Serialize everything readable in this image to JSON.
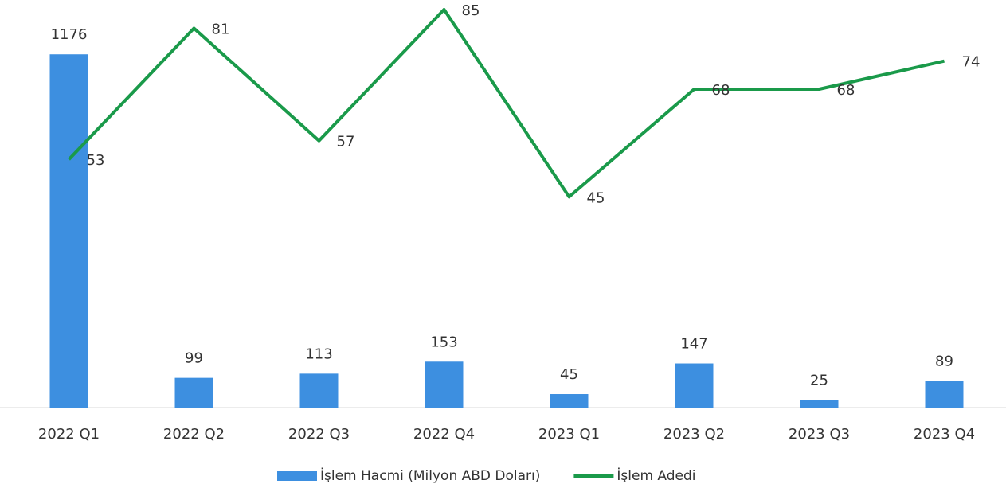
{
  "chart_data": {
    "type": "bar_line",
    "categories": [
      "2022 Q1",
      "2022 Q2",
      "2022 Q3",
      "2022 Q4",
      "2023 Q1",
      "2023 Q2",
      "2023 Q3",
      "2023 Q4"
    ],
    "series": [
      {
        "name": "İşlem Hacmi (Milyon ABD Doları)",
        "color": "#3d8fe0",
        "type": "bar",
        "axis": "y",
        "values": [
          1176,
          99,
          113,
          153,
          45,
          147,
          25,
          89
        ]
      },
      {
        "name": "İşlem Adedi",
        "color": "#1a9a4a",
        "type": "line",
        "axis": "y2",
        "values": [
          53,
          81,
          57,
          85,
          45,
          68,
          68,
          74
        ]
      }
    ],
    "ylim": [
      0,
      1325
    ],
    "y2lim": [
      0,
      85
    ],
    "legend": "bottom"
  }
}
